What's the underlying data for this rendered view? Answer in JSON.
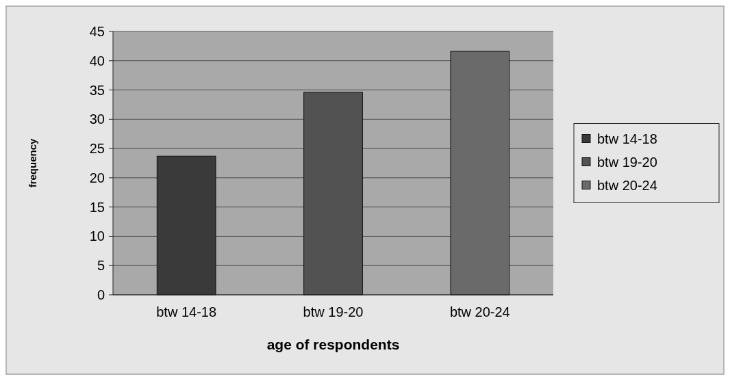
{
  "chart_data": {
    "type": "bar",
    "xlabel": "age of respondents",
    "ylabel": "frequency",
    "categories": [
      "btw 14-18",
      "btw 19-20",
      "btw 20-24"
    ],
    "series": [
      {
        "name": "btw 14-18",
        "color": "#3a3a3a",
        "values": [
          23.7,
          null,
          null
        ]
      },
      {
        "name": "btw 19-20",
        "color": "#525252",
        "values": [
          null,
          34.6,
          null
        ]
      },
      {
        "name": "btw 20-24",
        "color": "#6a6a6a",
        "values": [
          null,
          null,
          41.6
        ]
      }
    ],
    "ylim": [
      0,
      45
    ],
    "yticks": [
      0,
      5,
      10,
      15,
      20,
      25,
      30,
      35,
      40,
      45
    ],
    "grid": "y",
    "legend": "right"
  }
}
